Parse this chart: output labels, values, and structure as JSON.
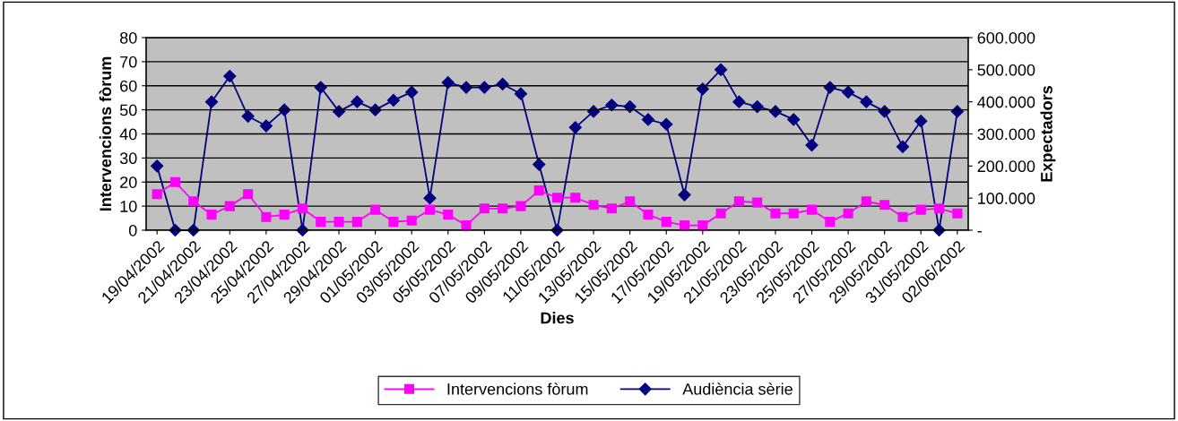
{
  "chart_data": {
    "type": "line",
    "xlabel": "Dies",
    "ylabel": "Intervencions fòrum",
    "y2label": "Expectadors",
    "categories": [
      "19/04/2002",
      null,
      "21/04/2002",
      null,
      "23/04/2002",
      null,
      "25/04/2002",
      null,
      "27/04/2002",
      null,
      "29/04/2002",
      null,
      "01/05/2002",
      null,
      "03/05/2002",
      null,
      "05/05/2002",
      null,
      "07/05/2002",
      null,
      "09/05/2002",
      null,
      "11/05/2002",
      null,
      "13/05/2002",
      null,
      "15/05/2002",
      null,
      "17/05/2002",
      null,
      "19/05/2002",
      null,
      "21/05/2002",
      null,
      "23/05/2002",
      null,
      "25/05/2002",
      null,
      "27/05/2002",
      null,
      "29/05/2002",
      null,
      "31/05/2002",
      null,
      "02/06/2002"
    ],
    "series": [
      {
        "name": "Intervencions fòrum",
        "color": "#ff00ff",
        "marker": "square",
        "values": [
          15,
          20,
          12,
          6.5,
          10,
          15,
          5.5,
          6.5,
          9,
          3.5,
          3.5,
          3.5,
          8.5,
          3.5,
          4,
          8.5,
          6.5,
          2,
          9,
          9,
          10,
          16.5,
          13.5,
          13.5,
          10.5,
          9,
          12,
          6.5,
          3.5,
          2,
          2,
          7,
          12,
          11.5,
          7,
          7,
          8.5,
          3.5,
          7,
          12,
          10.5,
          5.5,
          8.5,
          9,
          7
        ]
      },
      {
        "name": "Audiència sèrie",
        "color": "#000080",
        "marker": "diamond",
        "axis": "y2",
        "values": [
          200000,
          0,
          0,
          400000,
          480000,
          355000,
          325000,
          375000,
          0,
          445000,
          370000,
          400000,
          375000,
          405000,
          430000,
          100000,
          460000,
          445000,
          445000,
          455000,
          425000,
          205000,
          0,
          320000,
          370000,
          390000,
          385000,
          345000,
          330000,
          110000,
          440000,
          500000,
          400000,
          385000,
          370000,
          345000,
          265000,
          445000,
          430000,
          400000,
          370000,
          260000,
          340000,
          0,
          370000
        ]
      }
    ],
    "ylim": [
      0,
      80
    ],
    "yticks": [
      0,
      10,
      20,
      30,
      40,
      50,
      60,
      70,
      80
    ],
    "y2lim": [
      0,
      600000
    ],
    "y2ticks": [
      {
        "value": 0,
        "label": "-"
      },
      {
        "value": 100000,
        "label": "100.000"
      },
      {
        "value": 200000,
        "label": "200.000"
      },
      {
        "value": 300000,
        "label": "300.000"
      },
      {
        "value": 400000,
        "label": "400.000"
      },
      {
        "value": 500000,
        "label": "500.000"
      },
      {
        "value": 600000,
        "label": "600.000"
      }
    ],
    "grid": "y",
    "legend": "bottom",
    "line_style": "solid"
  }
}
